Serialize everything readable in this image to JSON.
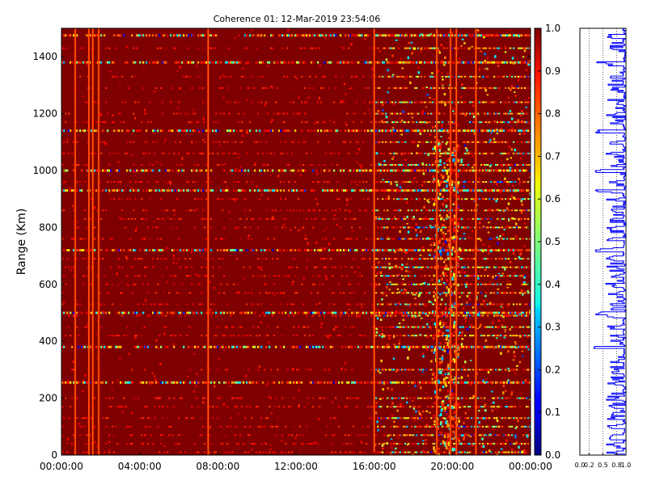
{
  "chart_data": [
    {
      "type": "heatmap",
      "title": "Coherence 01: 12-Mar-2019 23:54:06",
      "ylabel": "Range (Km)",
      "xlabel": "",
      "x_ticks": [
        "00:00:00",
        "04:00:00",
        "08:00:00",
        "12:00:00",
        "16:00:00",
        "20:00:00",
        "00:00:00"
      ],
      "x_range_hours": [
        0,
        24
      ],
      "y_ticks": [
        0,
        200,
        400,
        600,
        800,
        1000,
        1200,
        1400
      ],
      "y_range": [
        0,
        1500
      ],
      "colorscale": "jet",
      "value_range": [
        0.0,
        1.0
      ],
      "colorbar_ticks": [
        "0.0",
        "0.1",
        "0.2",
        "0.3",
        "0.4",
        "0.5",
        "0.6",
        "0.7",
        "0.8",
        "0.9",
        "1.0"
      ],
      "background_value": 1.0,
      "vertical_stripes_hours": [
        0.7,
        1.4,
        1.6,
        1.9,
        7.5,
        16.0,
        19.2,
        19.9,
        20.2,
        21.2
      ],
      "horizontal_band_km": [
        10,
        40,
        70,
        100,
        130,
        170,
        200,
        255,
        300,
        380,
        420,
        450,
        490,
        500,
        530,
        570,
        600,
        630,
        660,
        690,
        720,
        760,
        800,
        830,
        860,
        900,
        930,
        960,
        1000,
        1020,
        1060,
        1100,
        1140,
        1170,
        1200,
        1240,
        1290,
        1330,
        1380,
        1430,
        1475
      ],
      "strong_band_km": [
        255,
        380,
        500,
        720,
        930,
        1000,
        1140,
        1380,
        1475
      ],
      "active_period_hours": [
        16.0,
        24.0
      ]
    },
    {
      "type": "line",
      "title": "",
      "orientation": "vertical",
      "x_ticks": [
        "0.0",
        "0.2",
        "0.5",
        "0.8",
        "1.0"
      ],
      "x_range": [
        0.0,
        1.0
      ],
      "y_range": [
        0,
        1500
      ],
      "line_color": "#0000ff"
    }
  ]
}
